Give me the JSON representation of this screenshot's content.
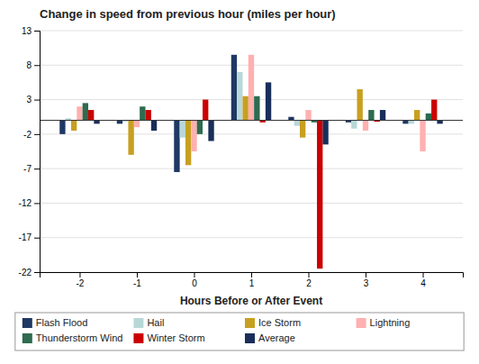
{
  "chart_data": {
    "type": "bar",
    "title": "Change in speed from previous hour (miles per hour)",
    "xlabel": "Hours Before or After Event",
    "x": [
      -2,
      -1,
      0,
      1,
      2,
      3,
      4
    ],
    "xlim": [
      -2.7,
      4.7
    ],
    "xticks": [
      -2,
      -1,
      0,
      1,
      2,
      3,
      4
    ],
    "series": [
      {
        "name": "Flash Flood",
        "color": "#1F3864",
        "values": [
          -2.0,
          -0.5,
          -7.5,
          9.5,
          0.5,
          -0.3,
          -0.5
        ]
      },
      {
        "name": "Hail",
        "color": "#B8D8D8",
        "values": [
          0.3,
          -0.2,
          -2.5,
          7.0,
          -0.8,
          -1.2,
          -0.5
        ]
      },
      {
        "name": "Ice Storm",
        "color": "#C8A020",
        "values": [
          -1.5,
          -5.0,
          -6.5,
          3.5,
          -2.5,
          4.5,
          1.5
        ]
      },
      {
        "name": "Lightning",
        "color": "#FFB0B0",
        "values": [
          2.0,
          -1.0,
          -4.5,
          9.5,
          1.5,
          -1.5,
          -4.5
        ]
      },
      {
        "name": "Thunderstorm Wind",
        "color": "#2E6B4F",
        "values": [
          2.5,
          2.0,
          -2.0,
          3.5,
          -0.3,
          1.5,
          1.0
        ]
      },
      {
        "name": "Winter Storm",
        "color": "#CC0000",
        "values": [
          1.5,
          1.5,
          3.0,
          -0.3,
          -21.5,
          -0.2,
          3.0
        ]
      },
      {
        "name": "Average",
        "color": "#1A2E5A",
        "values": [
          -0.5,
          -1.5,
          -3.0,
          5.5,
          -3.5,
          1.5,
          -0.5
        ]
      }
    ],
    "ylim": [
      -22,
      13
    ],
    "yticks": [
      -22,
      -17,
      -12,
      -7,
      -2,
      3,
      8,
      13
    ],
    "grid": true,
    "legend": "bottom"
  }
}
